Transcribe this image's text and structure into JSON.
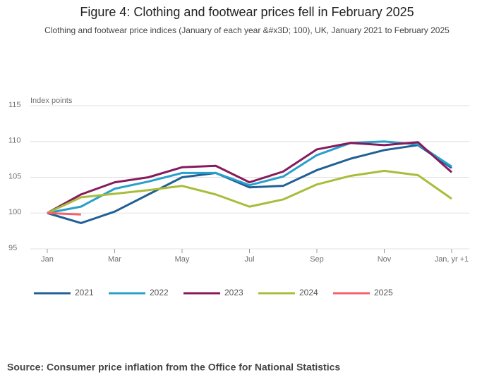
{
  "chart_data": {
    "type": "line",
    "title": "Figure 4: Clothing and footwear prices fell in February 2025",
    "subtitle": "Clothing and footwear price indices (January of each year &#x3D; 100), UK, January 2021 to February 2025",
    "y_label": "Index points",
    "source": "Source: Consumer price inflation from the Office for National Statistics",
    "categories": [
      "Jan",
      null,
      "Mar",
      null,
      "May",
      null,
      "Jul",
      null,
      "Sep",
      null,
      "Nov",
      null,
      "Jan, yr +1"
    ],
    "series": [
      {
        "name": "2021",
        "color": "#206095",
        "values": [
          100,
          98.6,
          100.2,
          102.6,
          105,
          105.6,
          103.6,
          103.8,
          106,
          107.6,
          108.8,
          109.5,
          106.3
        ]
      },
      {
        "name": "2022",
        "color": "#27a0cc",
        "values": [
          100,
          100.9,
          103.4,
          104.4,
          105.6,
          105.6,
          103.9,
          105.1,
          108.1,
          109.8,
          110,
          109.6,
          106.5
        ]
      },
      {
        "name": "2023",
        "color": "#871a5b",
        "values": [
          100,
          102.6,
          104.3,
          105,
          106.4,
          106.6,
          104.3,
          105.8,
          108.9,
          109.8,
          109.5,
          109.9,
          105.7
        ]
      },
      {
        "name": "2024",
        "color": "#a8bd3a",
        "values": [
          100,
          102.2,
          102.7,
          103.2,
          103.8,
          102.6,
          100.9,
          101.9,
          104,
          105.2,
          105.9,
          105.3,
          102
        ]
      },
      {
        "name": "2025",
        "color": "#f66068",
        "values": [
          100,
          99.8,
          null,
          null,
          null,
          null,
          null,
          null,
          null,
          null,
          null,
          null,
          null
        ]
      }
    ],
    "ylim": [
      95,
      115
    ],
    "yticks": [
      95,
      100,
      105,
      110,
      115
    ],
    "grid": true
  }
}
